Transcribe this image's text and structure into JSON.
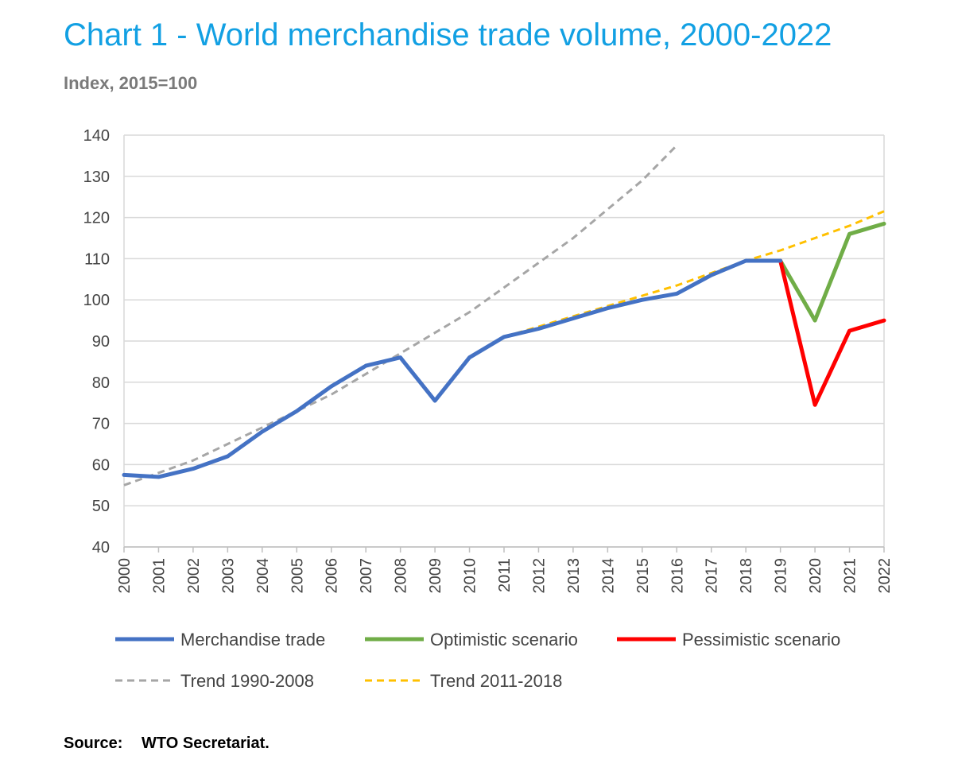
{
  "title": "Chart 1 - World merchandise trade volume, 2000-2022",
  "subtitle": "Index, 2015=100",
  "source": {
    "label": "Source:",
    "text": "WTO Secretariat."
  },
  "chart_data": {
    "type": "line",
    "x": [
      2000,
      2001,
      2002,
      2003,
      2004,
      2005,
      2006,
      2007,
      2008,
      2009,
      2010,
      2011,
      2012,
      2013,
      2014,
      2015,
      2016,
      2017,
      2018,
      2019,
      2020,
      2021,
      2022
    ],
    "xlim": [
      2000,
      2022
    ],
    "ylim": [
      40,
      140
    ],
    "yticks": [
      40,
      50,
      60,
      70,
      80,
      90,
      100,
      110,
      120,
      130,
      140
    ],
    "grid": true,
    "legend_position": "bottom",
    "series": [
      {
        "name": "Trend 1990-2008",
        "color": "#a6a6a6",
        "dash": true,
        "x": [
          2000,
          2001,
          2002,
          2003,
          2004,
          2005,
          2006,
          2007,
          2008,
          2009,
          2010,
          2011,
          2012,
          2013,
          2014,
          2015,
          2016
        ],
        "values": [
          55,
          58,
          61,
          65,
          69,
          73,
          77,
          82,
          87,
          92,
          97,
          103,
          109,
          115,
          122,
          129,
          137.5
        ]
      },
      {
        "name": "Trend 2011-2018",
        "color": "#ffc000",
        "dash": true,
        "x": [
          2011,
          2012,
          2013,
          2014,
          2015,
          2016,
          2017,
          2018,
          2019,
          2020,
          2021,
          2022
        ],
        "values": [
          91,
          93.5,
          96,
          98.5,
          101,
          103.5,
          106.5,
          109.5,
          112,
          115,
          118,
          121.5
        ]
      },
      {
        "name": "Optimistic scenario",
        "color": "#70ad47",
        "dash": false,
        "x": [
          2019,
          2020,
          2021,
          2022
        ],
        "values": [
          109.5,
          95,
          116,
          118.5
        ]
      },
      {
        "name": "Pessimistic scenario",
        "color": "#ff0000",
        "dash": false,
        "x": [
          2019,
          2020,
          2021,
          2022
        ],
        "values": [
          109.5,
          74.5,
          92.5,
          95
        ]
      },
      {
        "name": "Merchandise trade",
        "color": "#4472c4",
        "dash": false,
        "x": [
          2000,
          2001,
          2002,
          2003,
          2004,
          2005,
          2006,
          2007,
          2008,
          2009,
          2010,
          2011,
          2012,
          2013,
          2014,
          2015,
          2016,
          2017,
          2018,
          2019
        ],
        "values": [
          57.5,
          57,
          59,
          62,
          68,
          73,
          79,
          84,
          86,
          75.5,
          86,
          91,
          93,
          95.5,
          98,
          100,
          101.5,
          106,
          109.5,
          109.5
        ]
      }
    ],
    "legend_order": [
      "Merchandise trade",
      "Optimistic scenario",
      "Pessimistic scenario",
      "Trend 1990-2008",
      "Trend 2011-2018"
    ]
  }
}
